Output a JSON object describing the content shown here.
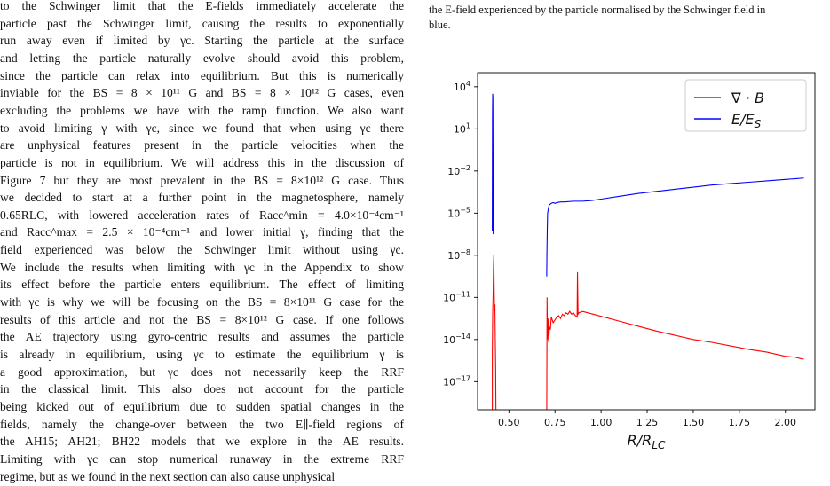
{
  "left_column": {
    "lines": [
      "to the Schwinger limit that the E-fields immediately accelerate the",
      "particle past the Schwinger limit, causing the results to exponentially",
      "run away even if limited by γc. Starting the particle at the surface",
      "and letting the particle naturally evolve should avoid this problem,",
      "since the particle can relax into equilibrium. But this is numerically",
      "inviable for the BS = 8 × 10¹¹ G and BS = 8 × 10¹² G cases, even",
      "excluding the problems we have with the ramp function. We also want",
      "to avoid limiting γ with γc, since we found that when using γc there",
      "are unphysical features present in the particle velocities when the",
      "particle is not in equilibrium. We will address this in the discussion of",
      "Figure 7 but they are most prevalent in the BS = 8×10¹² G case. Thus",
      "we decided to start at a further point in the magnetosphere, namely",
      "0.65RLC, with lowered acceleration rates of Racc^min = 4.0×10⁻⁴cm⁻¹",
      "and Racc^max = 2.5 × 10⁻⁴cm⁻¹ and lower initial γ, finding that the",
      "field experienced was below the Schwinger limit without using γc.",
      "We include the results when limiting with γc in the Appendix to show",
      "its effect before the particle enters equilibrium. The effect of limiting",
      "with γc is why we will be focusing on the BS = 8×10¹¹ G case for the",
      "results of this article and not the BS = 8×10¹² G case. If one follows",
      "the AE trajectory using gyro-centric results and assumes the particle",
      "is already in equilibrium, using γc to estimate the equilibrium γ is",
      "a good approximation, but γc does not necessarily keep the RRF",
      "in the classical limit. This also does not account for the particle",
      "being kicked out of equilibrium due to sudden spatial changes in the",
      "fields, namely the change-over between the two E∥-field regions of",
      "the AH15; AH21; BH22 models that we explore in the AE results.",
      "Limiting with γc can stop numerical runaway in the extreme RRF",
      "regime, but as we found in the next section can also cause unphysical"
    ]
  },
  "caption": {
    "lines": [
      "the E-field experienced by the particle normalised by the Schwinger field in",
      "blue."
    ]
  },
  "chart_data": {
    "type": "line",
    "title": "",
    "xlabel": "R/R_LC",
    "ylabel": "",
    "yscale": "log",
    "xlim": [
      0.33,
      2.16
    ],
    "ylim_exponent": [
      -19,
      5
    ],
    "x_ticks": [
      "0.50",
      "0.75",
      "1.00",
      "1.25",
      "1.50",
      "1.75",
      "2.00"
    ],
    "x_tick_values": [
      0.5,
      0.75,
      1.0,
      1.25,
      1.5,
      1.75,
      2.0
    ],
    "y_ticks": [
      "10^4",
      "10^1",
      "10^-2",
      "10^-5",
      "10^-8",
      "10^-11",
      "10^-14",
      "10^-17"
    ],
    "y_tick_exponents": [
      4,
      1,
      -2,
      -5,
      -8,
      -11,
      -14,
      -17
    ],
    "legend_position": "top-right",
    "grid": false,
    "series": [
      {
        "name": "∇ · B",
        "color": "#ff0000",
        "segments": [
          {
            "x": [
              0.41,
              0.41,
              0.412,
              0.414,
              0.416,
              0.418,
              0.42,
              0.422,
              0.424,
              0.426,
              0.428,
              0.43,
              0.432
            ],
            "log10y": [
              -20,
              -15.0,
              -12.0,
              -11.0,
              -9.0,
              -8.0,
              -10.5,
              -12.0,
              -11.5,
              -14.0,
              -16.0,
              -20,
              -20
            ]
          },
          {
            "x": [
              0.705,
              0.706,
              0.707,
              0.709,
              0.712,
              0.716,
              0.72,
              0.725,
              0.73,
              0.74,
              0.75,
              0.76,
              0.77,
              0.78,
              0.79,
              0.8,
              0.81,
              0.82,
              0.83,
              0.84,
              0.85,
              0.86,
              0.87,
              0.872,
              0.875,
              0.88,
              0.9,
              1.0,
              1.1,
              1.2,
              1.3,
              1.4,
              1.5,
              1.6,
              1.7,
              1.8,
              1.9,
              2.0,
              2.05,
              2.08,
              2.1
            ],
            "log10y": [
              -20,
              -15.5,
              -11.0,
              -14.0,
              -12.5,
              -14.2,
              -13.1,
              -13.3,
              -12.4,
              -12.8,
              -12.6,
              -12.4,
              -12.3,
              -12.5,
              -12.2,
              -12.3,
              -12.1,
              -12.2,
              -12.0,
              -12.2,
              -12.1,
              -12.3,
              -12.4,
              -9.2,
              -12.2,
              -12.1,
              -12.0,
              -12.35,
              -12.7,
              -13.05,
              -13.4,
              -13.7,
              -14.0,
              -14.2,
              -14.45,
              -14.7,
              -14.9,
              -15.2,
              -15.25,
              -15.35,
              -15.4
            ]
          }
        ]
      },
      {
        "name": "E/E_S",
        "color": "#0000ff",
        "segments": [
          {
            "x": [
              0.41,
              0.41,
              0.411,
              0.412,
              0.413,
              0.414,
              0.415
            ],
            "log10y": [
              -6.3,
              -5.0,
              2.0,
              3.5,
              3.2,
              -1.0,
              -6.5
            ]
          },
          {
            "x": [
              0.705,
              0.706,
              0.708,
              0.71,
              0.715,
              0.72,
              0.73,
              0.74,
              0.75,
              0.76,
              0.78,
              0.8,
              0.85,
              0.9,
              0.95,
              1.0,
              1.1,
              1.2,
              1.3,
              1.4,
              1.5,
              1.6,
              1.7,
              1.8,
              1.9,
              2.0,
              2.05,
              2.1
            ],
            "log10y": [
              -9.5,
              -8.0,
              -6.2,
              -5.0,
              -4.6,
              -4.4,
              -4.3,
              -4.25,
              -4.3,
              -4.25,
              -4.2,
              -4.2,
              -4.15,
              -4.15,
              -4.1,
              -4.0,
              -3.8,
              -3.6,
              -3.45,
              -3.3,
              -3.15,
              -3.0,
              -2.9,
              -2.8,
              -2.7,
              -2.6,
              -2.55,
              -2.5
            ]
          }
        ]
      }
    ]
  }
}
